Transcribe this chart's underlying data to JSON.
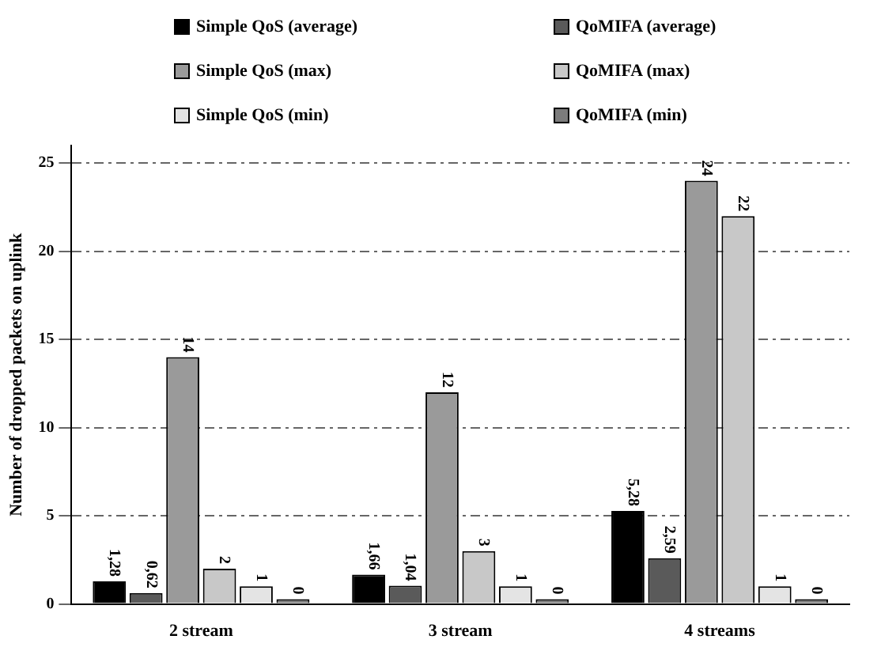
{
  "chart_data": {
    "type": "bar",
    "ylabel": "Number of dropped packets on uplink",
    "categories": [
      "2 stream",
      "3 stream",
      "4 streams"
    ],
    "series": [
      {
        "name": "Simple QoS (average)",
        "color": "#000000",
        "values": [
          1.28,
          1.66,
          5.28
        ],
        "value_labels": [
          "1,28",
          "1,66",
          "5,28"
        ]
      },
      {
        "name": "QoMIFA (average)",
        "color": "#5a5a5a",
        "values": [
          0.62,
          1.04,
          2.59
        ],
        "value_labels": [
          "0,62",
          "1,04",
          "2,59"
        ]
      },
      {
        "name": "Simple QoS (max)",
        "color": "#9a9a9a",
        "values": [
          14,
          12,
          24
        ],
        "value_labels": [
          "14",
          "12",
          "24"
        ]
      },
      {
        "name": "QoMIFA (max)",
        "color": "#c8c8c8",
        "values": [
          2,
          3,
          22
        ],
        "value_labels": [
          "2",
          "3",
          "22"
        ]
      },
      {
        "name": "Simple QoS (min)",
        "color": "#e4e4e4",
        "values": [
          1,
          1,
          1
        ],
        "value_labels": [
          "1",
          "1",
          "1"
        ]
      },
      {
        "name": "QoMIFA (min)",
        "color": "#7c7c7c",
        "values": [
          0,
          0,
          0
        ],
        "value_labels": [
          "0",
          "0",
          "0"
        ]
      }
    ],
    "ylim": [
      0,
      26
    ],
    "yticks": [
      0,
      5,
      10,
      15,
      20,
      25
    ],
    "grid": "y",
    "legend": "top"
  }
}
